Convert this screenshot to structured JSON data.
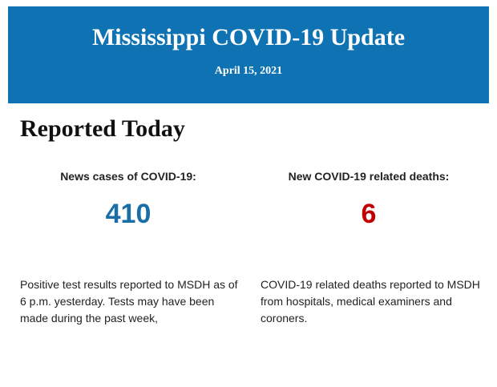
{
  "header": {
    "title": "Mississippi COVID-19 Update",
    "date": "April 15, 2021"
  },
  "section": {
    "title": "Reported Today",
    "stats": [
      {
        "label": "News cases of COVID-19:",
        "value": "410",
        "color": "#1a6ea8",
        "description": "Positive test results reported to MSDH as of 6 p.m. yesterday. Tests may have been made during the past week,"
      },
      {
        "label": "New COVID-19 related deaths:",
        "value": "6",
        "color": "#c00000",
        "description": "COVID-19 related deaths reported to MSDH from hospitals, medical examiners and coroners."
      }
    ]
  }
}
